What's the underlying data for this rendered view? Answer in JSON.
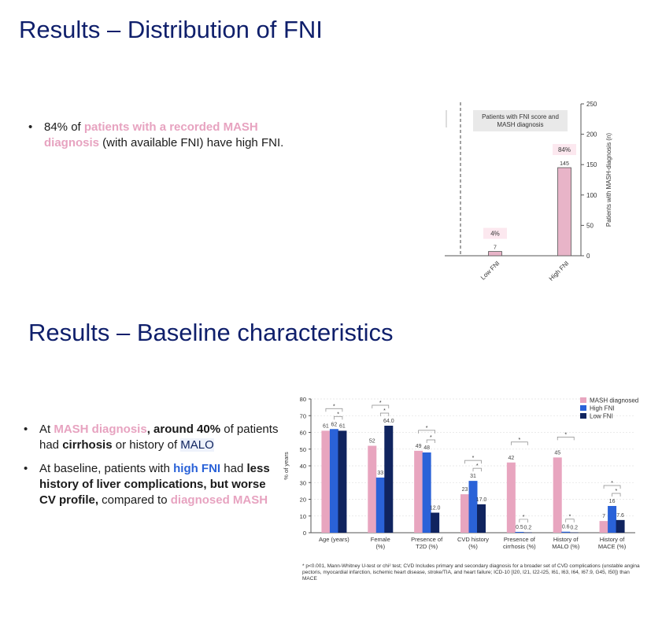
{
  "slide1": {
    "title": "Results – Distribution of FNI",
    "bullet": {
      "pre": "84% of ",
      "highlight": "patients with a recorded MASH diagnosis",
      "post": " (with available FNI) have high FNI."
    }
  },
  "slide2": {
    "title": "Results – Baseline characteristics",
    "bullet1": {
      "pre": "At ",
      "mash": "MASH diagnosis",
      "comma_around": ", around 40%",
      "of": " of patients had ",
      "cirrhosis": "cirrhosis",
      "mid": " or history of ",
      "malo": "MALO"
    },
    "bullet2": {
      "pre": "At baseline, patients with ",
      "high_fni": "high FNI",
      "had": " had ",
      "bold_part": "less history of liver complications, but worse CV profile,",
      "compared": " compared to ",
      "diag": "diagnosed MASH"
    },
    "footnote": "* p<0.001, Mann-Whitney U-test or chi² test; CVD Includes primary and secondary diagnosis for a broader set of CVD complications (unstable angina pectoris, myocardial infarction, ischemic heart disease, stroke/TIA, and heart failure; ICD-10 [I20, I21, I22-I25, I61, I63, I64, I67.9, G45, I50]) than MACE"
  },
  "colors": {
    "title": "#0f1f6b",
    "pink": "#e8a5bf",
    "blue": "#2a62d8",
    "navy": "#10245f"
  },
  "chart_data": [
    {
      "type": "bar",
      "box_label": "Patients with FNI score and MASH diagnosis",
      "categories": [
        "Low FNI",
        "High FNI"
      ],
      "values": [
        7,
        145
      ],
      "value_labels": [
        "7",
        "145"
      ],
      "percent_labels": [
        "4%",
        "84%"
      ],
      "ylabel": "Patients with MASH-diagnosis (n)",
      "ylim": [
        0,
        250
      ],
      "yticks": [
        0,
        50,
        100,
        150,
        200,
        250
      ],
      "ytick_labels": [
        "0",
        "50",
        "100",
        "150",
        "200",
        "250"
      ],
      "y_axis_side": "right",
      "color": "#e8b4c8"
    },
    {
      "type": "bar",
      "ylabel": "% of years",
      "ylim": [
        0,
        80
      ],
      "yticks": [
        0,
        10,
        20,
        30,
        40,
        50,
        60,
        70,
        80
      ],
      "ytick_labels": [
        "0",
        "10",
        "20",
        "30",
        "40",
        "50",
        "60",
        "70",
        "80"
      ],
      "categories": [
        [
          "Age (years)"
        ],
        [
          "Female",
          "(%)"
        ],
        [
          "Presence of",
          "T2D (%)"
        ],
        [
          "CVD history",
          "(%)"
        ],
        [
          "Presence of",
          "cirrhosis  (%)"
        ],
        [
          "History of",
          "MALO (%)"
        ],
        [
          "History of",
          "MACE (%)"
        ]
      ],
      "series": [
        {
          "name": "MASH diagnosed",
          "color": "#e8a5bf",
          "values": [
            61,
            52,
            49,
            23,
            42,
            45,
            7
          ],
          "labels": [
            "61",
            "52",
            "49",
            "23",
            "42",
            "45",
            "7"
          ]
        },
        {
          "name": "High FNI",
          "color": "#2a62d8",
          "values": [
            62,
            33,
            48,
            31,
            0.5,
            0.6,
            16
          ],
          "labels": [
            "62",
            "33",
            "48",
            "31",
            "0.5",
            "0.6",
            "16"
          ]
        },
        {
          "name": "Low FNI",
          "color": "#10245f",
          "values": [
            61,
            64.0,
            12.0,
            17.0,
            0.2,
            0.2,
            7.6
          ],
          "labels": [
            "61",
            "64.0",
            "12.0",
            "17.0",
            "0.2",
            "0.2",
            "7.6"
          ]
        }
      ],
      "significance_marker": "*",
      "legend": "top-right"
    }
  ]
}
